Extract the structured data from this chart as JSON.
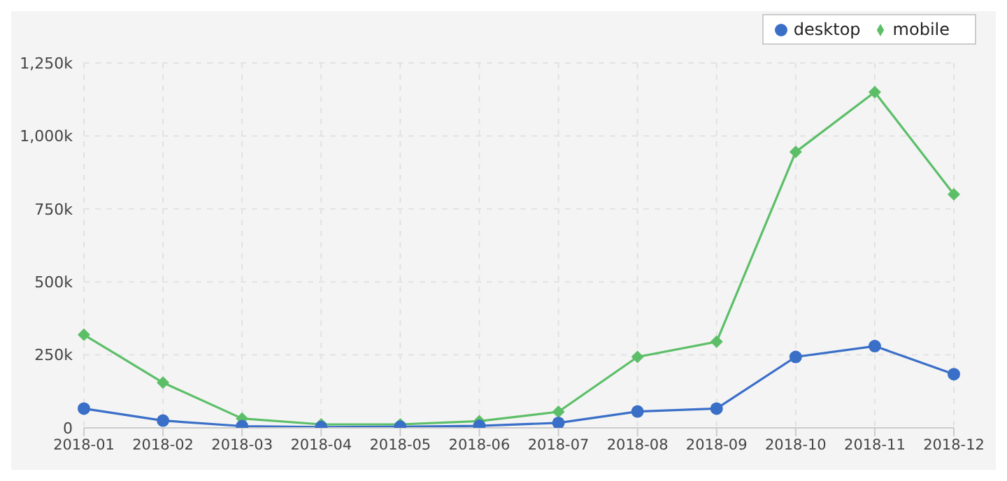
{
  "chart_data": {
    "type": "line",
    "categories": [
      "2018-01",
      "2018-02",
      "2018-03",
      "2018-04",
      "2018-05",
      "2018-06",
      "2018-07",
      "2018-08",
      "2018-09",
      "2018-10",
      "2018-11",
      "2018-12"
    ],
    "series": [
      {
        "name": "desktop",
        "color": "#3a6fc8",
        "marker": "circle",
        "values": [
          66000,
          25000,
          6000,
          3000,
          4000,
          7000,
          17000,
          56000,
          66000,
          243000,
          280000,
          184000
        ]
      },
      {
        "name": "mobile",
        "color": "#5cbf68",
        "marker": "diamond",
        "values": [
          319000,
          155000,
          32000,
          12000,
          12000,
          23000,
          55000,
          243000,
          295000,
          945000,
          1150000,
          800000
        ]
      }
    ],
    "ylim": [
      0,
      1250000
    ],
    "yticks": [
      {
        "value": 0,
        "label": "0"
      },
      {
        "value": 250000,
        "label": "250k"
      },
      {
        "value": 500000,
        "label": "500k"
      },
      {
        "value": 750000,
        "label": "750k"
      },
      {
        "value": 1000000,
        "label": "1,000k"
      },
      {
        "value": 1250000,
        "label": "1,250k"
      }
    ],
    "grid": true,
    "legend": "top right",
    "line_style": "solid"
  }
}
